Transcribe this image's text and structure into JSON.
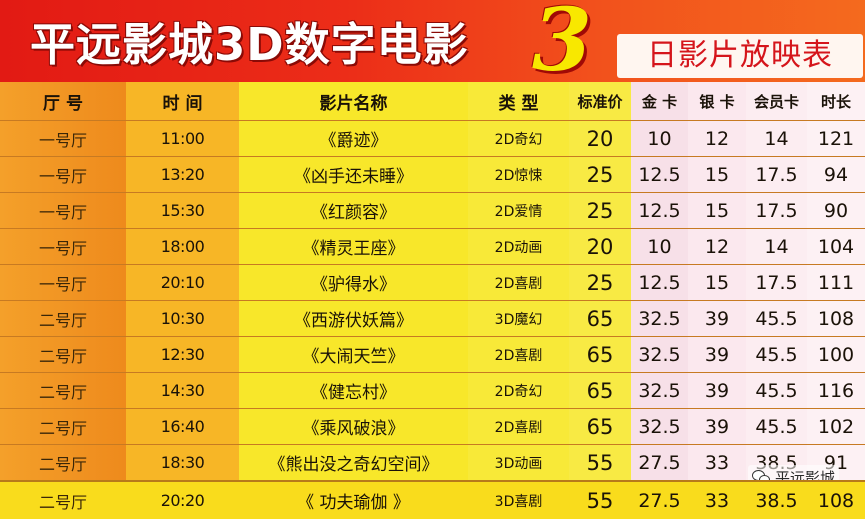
{
  "header": {
    "title": "平远影城3D数字电影",
    "big_number": "3",
    "subtitle": "日影片放映表"
  },
  "columns": {
    "hall": "厅 号",
    "time": "时 间",
    "title": "影片名称",
    "type": "类 型",
    "standard": "标准价",
    "gold": "金 卡",
    "silver": "银 卡",
    "member": "会员卡",
    "duration": "时长"
  },
  "rows": [
    {
      "hall": "一号厅",
      "time": "11:00",
      "title": "《爵迹》",
      "type": "2D奇幻",
      "standard": "20",
      "gold": "10",
      "silver": "12",
      "member": "14",
      "duration": "121"
    },
    {
      "hall": "一号厅",
      "time": "13:20",
      "title": "《凶手还未睡》",
      "type": "2D惊悚",
      "standard": "25",
      "gold": "12.5",
      "silver": "15",
      "member": "17.5",
      "duration": "94"
    },
    {
      "hall": "一号厅",
      "time": "15:30",
      "title": "《红颜容》",
      "type": "2D爱情",
      "standard": "25",
      "gold": "12.5",
      "silver": "15",
      "member": "17.5",
      "duration": "90"
    },
    {
      "hall": "一号厅",
      "time": "18:00",
      "title": "《精灵王座》",
      "type": "2D动画",
      "standard": "20",
      "gold": "10",
      "silver": "12",
      "member": "14",
      "duration": "104"
    },
    {
      "hall": "一号厅",
      "time": "20:10",
      "title": "《驴得水》",
      "type": "2D喜剧",
      "standard": "25",
      "gold": "12.5",
      "silver": "15",
      "member": "17.5",
      "duration": "111"
    },
    {
      "hall": "二号厅",
      "time": "10:30",
      "title": "《西游伏妖篇》",
      "type": "3D魔幻",
      "standard": "65",
      "gold": "32.5",
      "silver": "39",
      "member": "45.5",
      "duration": "108"
    },
    {
      "hall": "二号厅",
      "time": "12:30",
      "title": "《大闹天竺》",
      "type": "2D喜剧",
      "standard": "65",
      "gold": "32.5",
      "silver": "39",
      "member": "45.5",
      "duration": "100"
    },
    {
      "hall": "二号厅",
      "time": "14:30",
      "title": "《健忘村》",
      "type": "2D奇幻",
      "standard": "65",
      "gold": "32.5",
      "silver": "39",
      "member": "45.5",
      "duration": "116"
    },
    {
      "hall": "二号厅",
      "time": "16:40",
      "title": "《乘风破浪》",
      "type": "2D喜剧",
      "standard": "65",
      "gold": "32.5",
      "silver": "39",
      "member": "45.5",
      "duration": "102"
    },
    {
      "hall": "二号厅",
      "time": "18:30",
      "title": "《熊出没之奇幻空间》",
      "type": "3D动画",
      "standard": "55",
      "gold": "27.5",
      "silver": "33",
      "member": "38.5",
      "duration": "91"
    },
    {
      "hall": "二号厅",
      "time": "20:20",
      "title": "《 功夫瑜伽 》",
      "type": "3D喜剧",
      "standard": "55",
      "gold": "27.5",
      "silver": "33",
      "member": "38.5",
      "duration": "108"
    }
  ],
  "watermark": "平远影城"
}
